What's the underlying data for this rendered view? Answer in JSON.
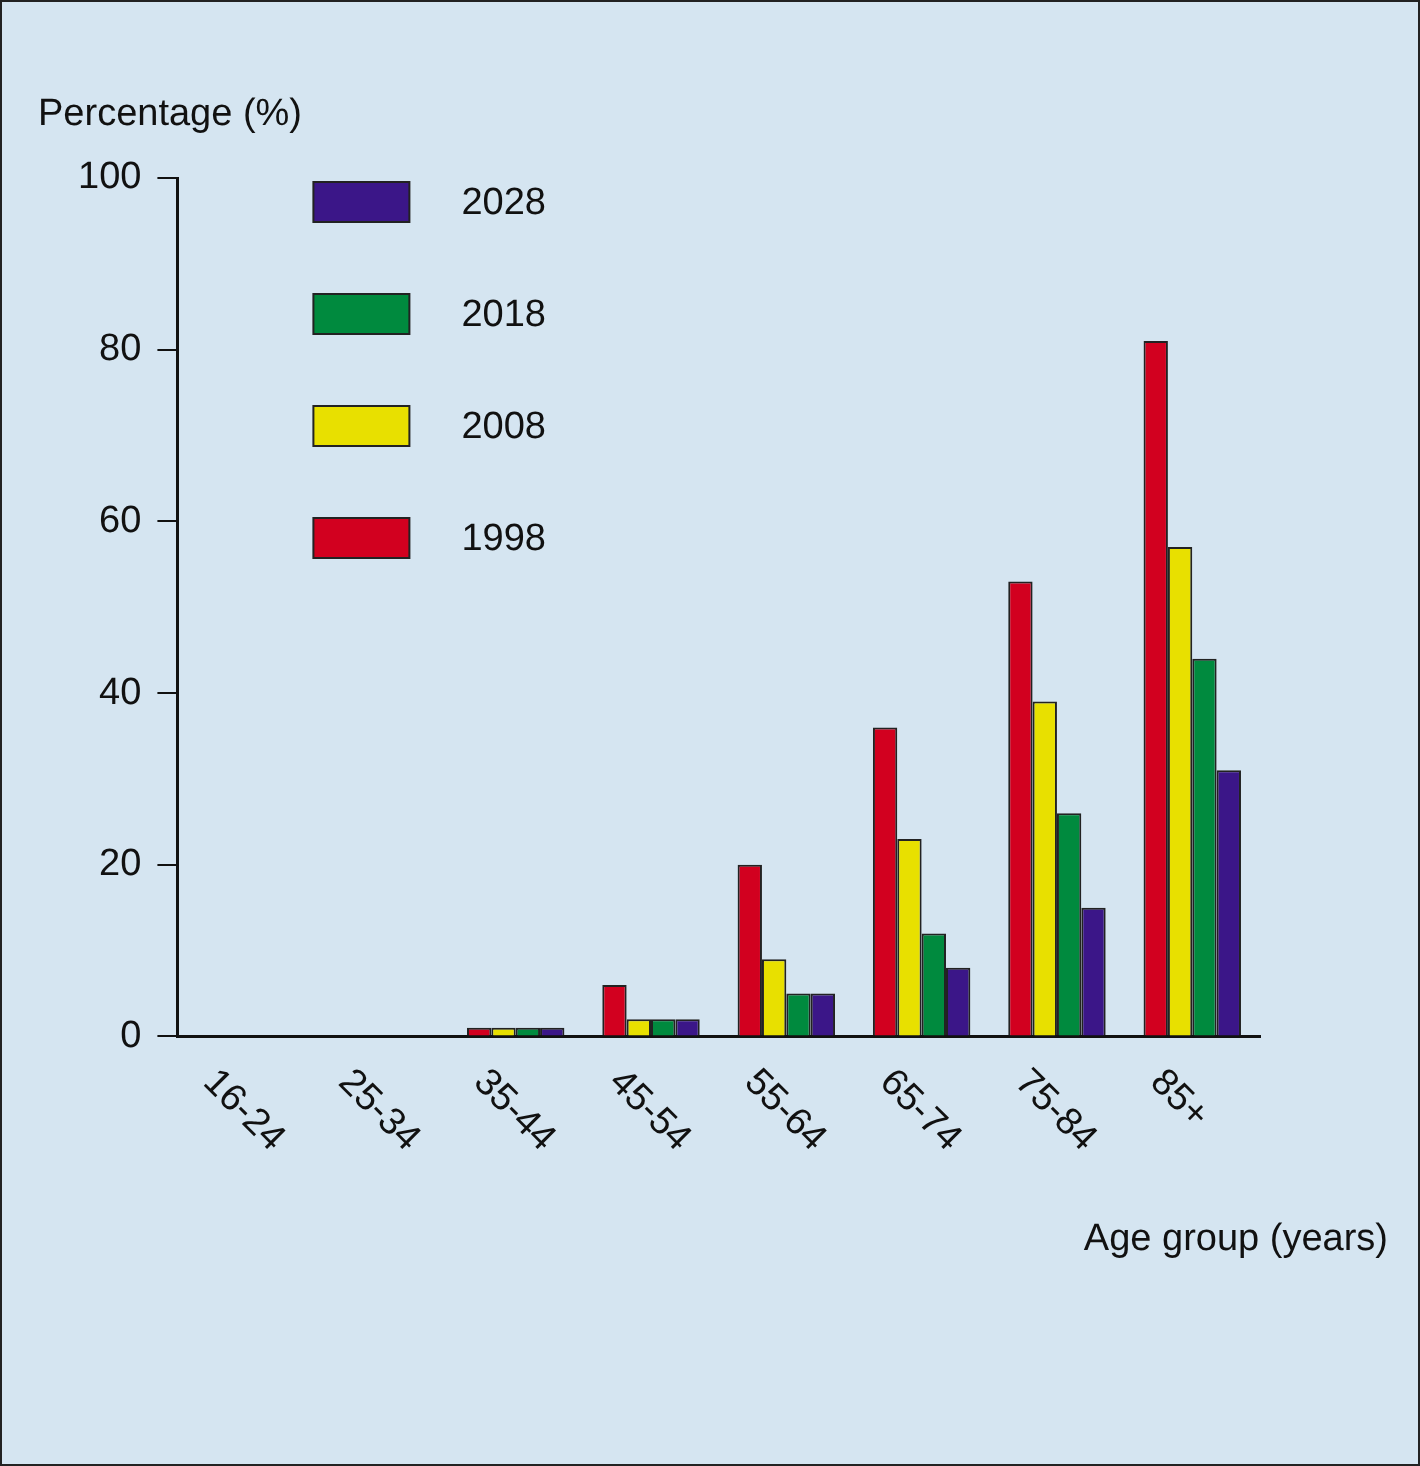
{
  "chart_data": {
    "type": "bar",
    "xlabel": "Age group (years)",
    "ylabel": "Percentage (%)",
    "categories": [
      "16-24",
      "25-34",
      "35-44",
      "45-54",
      "55-64",
      "65-74",
      "75-84",
      "85+"
    ],
    "series": [
      {
        "name": "1998",
        "color": "#d2001f",
        "values": [
          0,
          0,
          1,
          6,
          20,
          36,
          53,
          81
        ]
      },
      {
        "name": "2008",
        "color": "#e8e000",
        "values": [
          0,
          0,
          1,
          2,
          9,
          23,
          39,
          57
        ]
      },
      {
        "name": "2018",
        "color": "#008a3e",
        "values": [
          0,
          0,
          1,
          2,
          5,
          12,
          26,
          44
        ]
      },
      {
        "name": "2028",
        "color": "#3b1688",
        "values": [
          0,
          0,
          1,
          2,
          5,
          8,
          15,
          31
        ]
      }
    ],
    "ylim": [
      0,
      100
    ],
    "yticks": [
      0,
      20,
      40,
      60,
      80,
      100
    ],
    "grid": false,
    "legend": "top left"
  }
}
